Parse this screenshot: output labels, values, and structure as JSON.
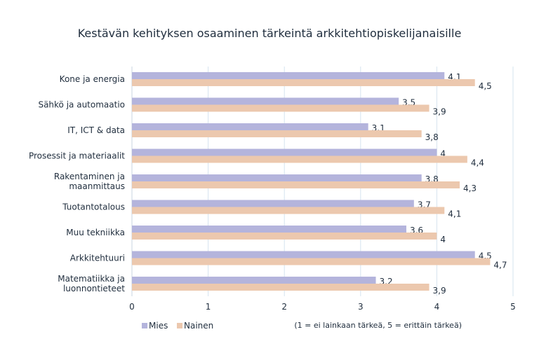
{
  "chart_data": {
    "type": "bar",
    "orientation": "horizontal",
    "title": "Kestävän kehityksen osaaminen tärkeintä arkkitehtiopiskelijanaisille",
    "categories": [
      "Kone ja energia",
      "Sähkö ja automaatio",
      "IT, ICT & data",
      "Prosessit ja materiaalit",
      "Rakentaminen ja maanmittaus",
      "Tuotantotalous",
      "Muu tekniikka",
      "Arkkitehtuuri",
      "Matematiikka ja luonnontieteet"
    ],
    "series": [
      {
        "name": "Mies",
        "color": "#b4b4dc",
        "values": [
          4.1,
          3.5,
          3.1,
          4,
          3.8,
          3.7,
          3.6,
          4.5,
          3.2
        ],
        "labels": [
          "4,1",
          "3,5",
          "3,1",
          "4",
          "3,8",
          "3,7",
          "3,6",
          "4,5",
          "3,2"
        ]
      },
      {
        "name": "Nainen",
        "color": "#ecc8ae",
        "values": [
          4.5,
          3.9,
          3.8,
          4.4,
          4.3,
          4.1,
          4,
          4.7,
          3.9
        ],
        "labels": [
          "4,5",
          "3,9",
          "3,8",
          "4,4",
          "4,3",
          "4,1",
          "4",
          "4,7",
          "3,9"
        ]
      }
    ],
    "xlim": [
      0,
      5
    ],
    "xticks": [
      "0",
      "1",
      "2",
      "3",
      "4",
      "5"
    ],
    "grid": true,
    "gridColor": "#d6e4ef",
    "legend": "bottom-left",
    "note": "(1 = ei lainkaan tärkeä, 5 = erittäin tärkeä)"
  }
}
